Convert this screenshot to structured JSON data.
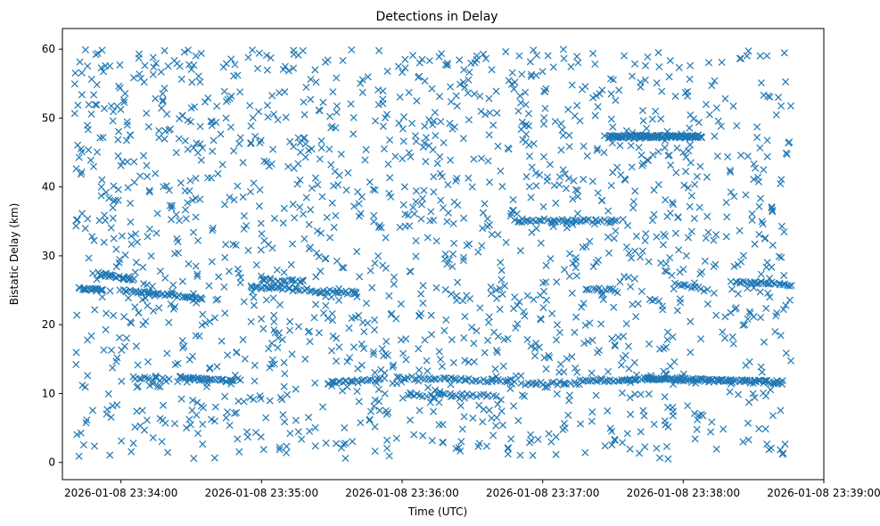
{
  "chart_data": {
    "type": "scatter",
    "title": "Detections in Delay",
    "xlabel": "Time (UTC)",
    "ylabel": "Bistatic Delay (km)",
    "marker": "x",
    "color": "#1f77b4",
    "x_unit": "seconds after 2026-01-08 23:34:00",
    "xlim": [
      -25,
      300
    ],
    "ylim": [
      -2.5,
      63
    ],
    "x_ticks": [
      0,
      60,
      120,
      180,
      240,
      300
    ],
    "x_tick_labels": [
      "2026-01-08 23:34:00",
      "2026-01-08 23:35:00",
      "2026-01-08 23:36:00",
      "2026-01-08 23:37:00",
      "2026-01-08 23:38:00",
      "2026-01-08 23:39:00"
    ],
    "y_ticks": [
      0,
      10,
      20,
      30,
      40,
      50,
      60
    ],
    "y_tick_labels": [
      "0",
      "10",
      "20",
      "30",
      "40",
      "50",
      "60"
    ],
    "data_span_seconds": [
      -20,
      286
    ],
    "background_count": 1700,
    "tracks": [
      {
        "x": [
          -18,
          -8
        ],
        "y": [
          25.2,
          25.0
        ],
        "n": 18
      },
      {
        "x": [
          -10,
          5
        ],
        "y": [
          27.4,
          26.6
        ],
        "n": 22
      },
      {
        "x": [
          0,
          35
        ],
        "y": [
          25.0,
          23.8
        ],
        "n": 40
      },
      {
        "x": [
          25,
          48
        ],
        "y": [
          12.3,
          11.8
        ],
        "n": 35
      },
      {
        "x": [
          5,
          20
        ],
        "y": [
          12.3,
          12.0
        ],
        "n": 14
      },
      {
        "x": [
          55,
          100
        ],
        "y": [
          25.5,
          24.6
        ],
        "n": 48
      },
      {
        "x": [
          60,
          78
        ],
        "y": [
          26.6,
          26.3
        ],
        "n": 18
      },
      {
        "x": [
          88,
          112
        ],
        "y": [
          11.5,
          12.0
        ],
        "n": 26
      },
      {
        "x": [
          118,
          168
        ],
        "y": [
          12.3,
          11.8
        ],
        "n": 45
      },
      {
        "x": [
          122,
          160
        ],
        "y": [
          9.8,
          9.8
        ],
        "n": 28
      },
      {
        "x": [
          168,
          212
        ],
        "y": [
          35.2,
          35.0
        ],
        "n": 45
      },
      {
        "x": [
          172,
          196
        ],
        "y": [
          11.5,
          11.5
        ],
        "n": 18
      },
      {
        "x": [
          196,
          228
        ],
        "y": [
          11.8,
          12.2
        ],
        "n": 38
      },
      {
        "x": [
          208,
          248
        ],
        "y": [
          47.3,
          47.3
        ],
        "n": 110
      },
      {
        "x": [
          225,
          282
        ],
        "y": [
          12.2,
          11.6
        ],
        "n": 100
      },
      {
        "x": [
          262,
          286
        ],
        "y": [
          26.2,
          25.8
        ],
        "n": 28
      },
      {
        "x": [
          198,
          210
        ],
        "y": [
          25.2,
          25.0
        ],
        "n": 12
      },
      {
        "x": [
          238,
          250
        ],
        "y": [
          26.0,
          25.0
        ],
        "n": 12
      }
    ]
  }
}
